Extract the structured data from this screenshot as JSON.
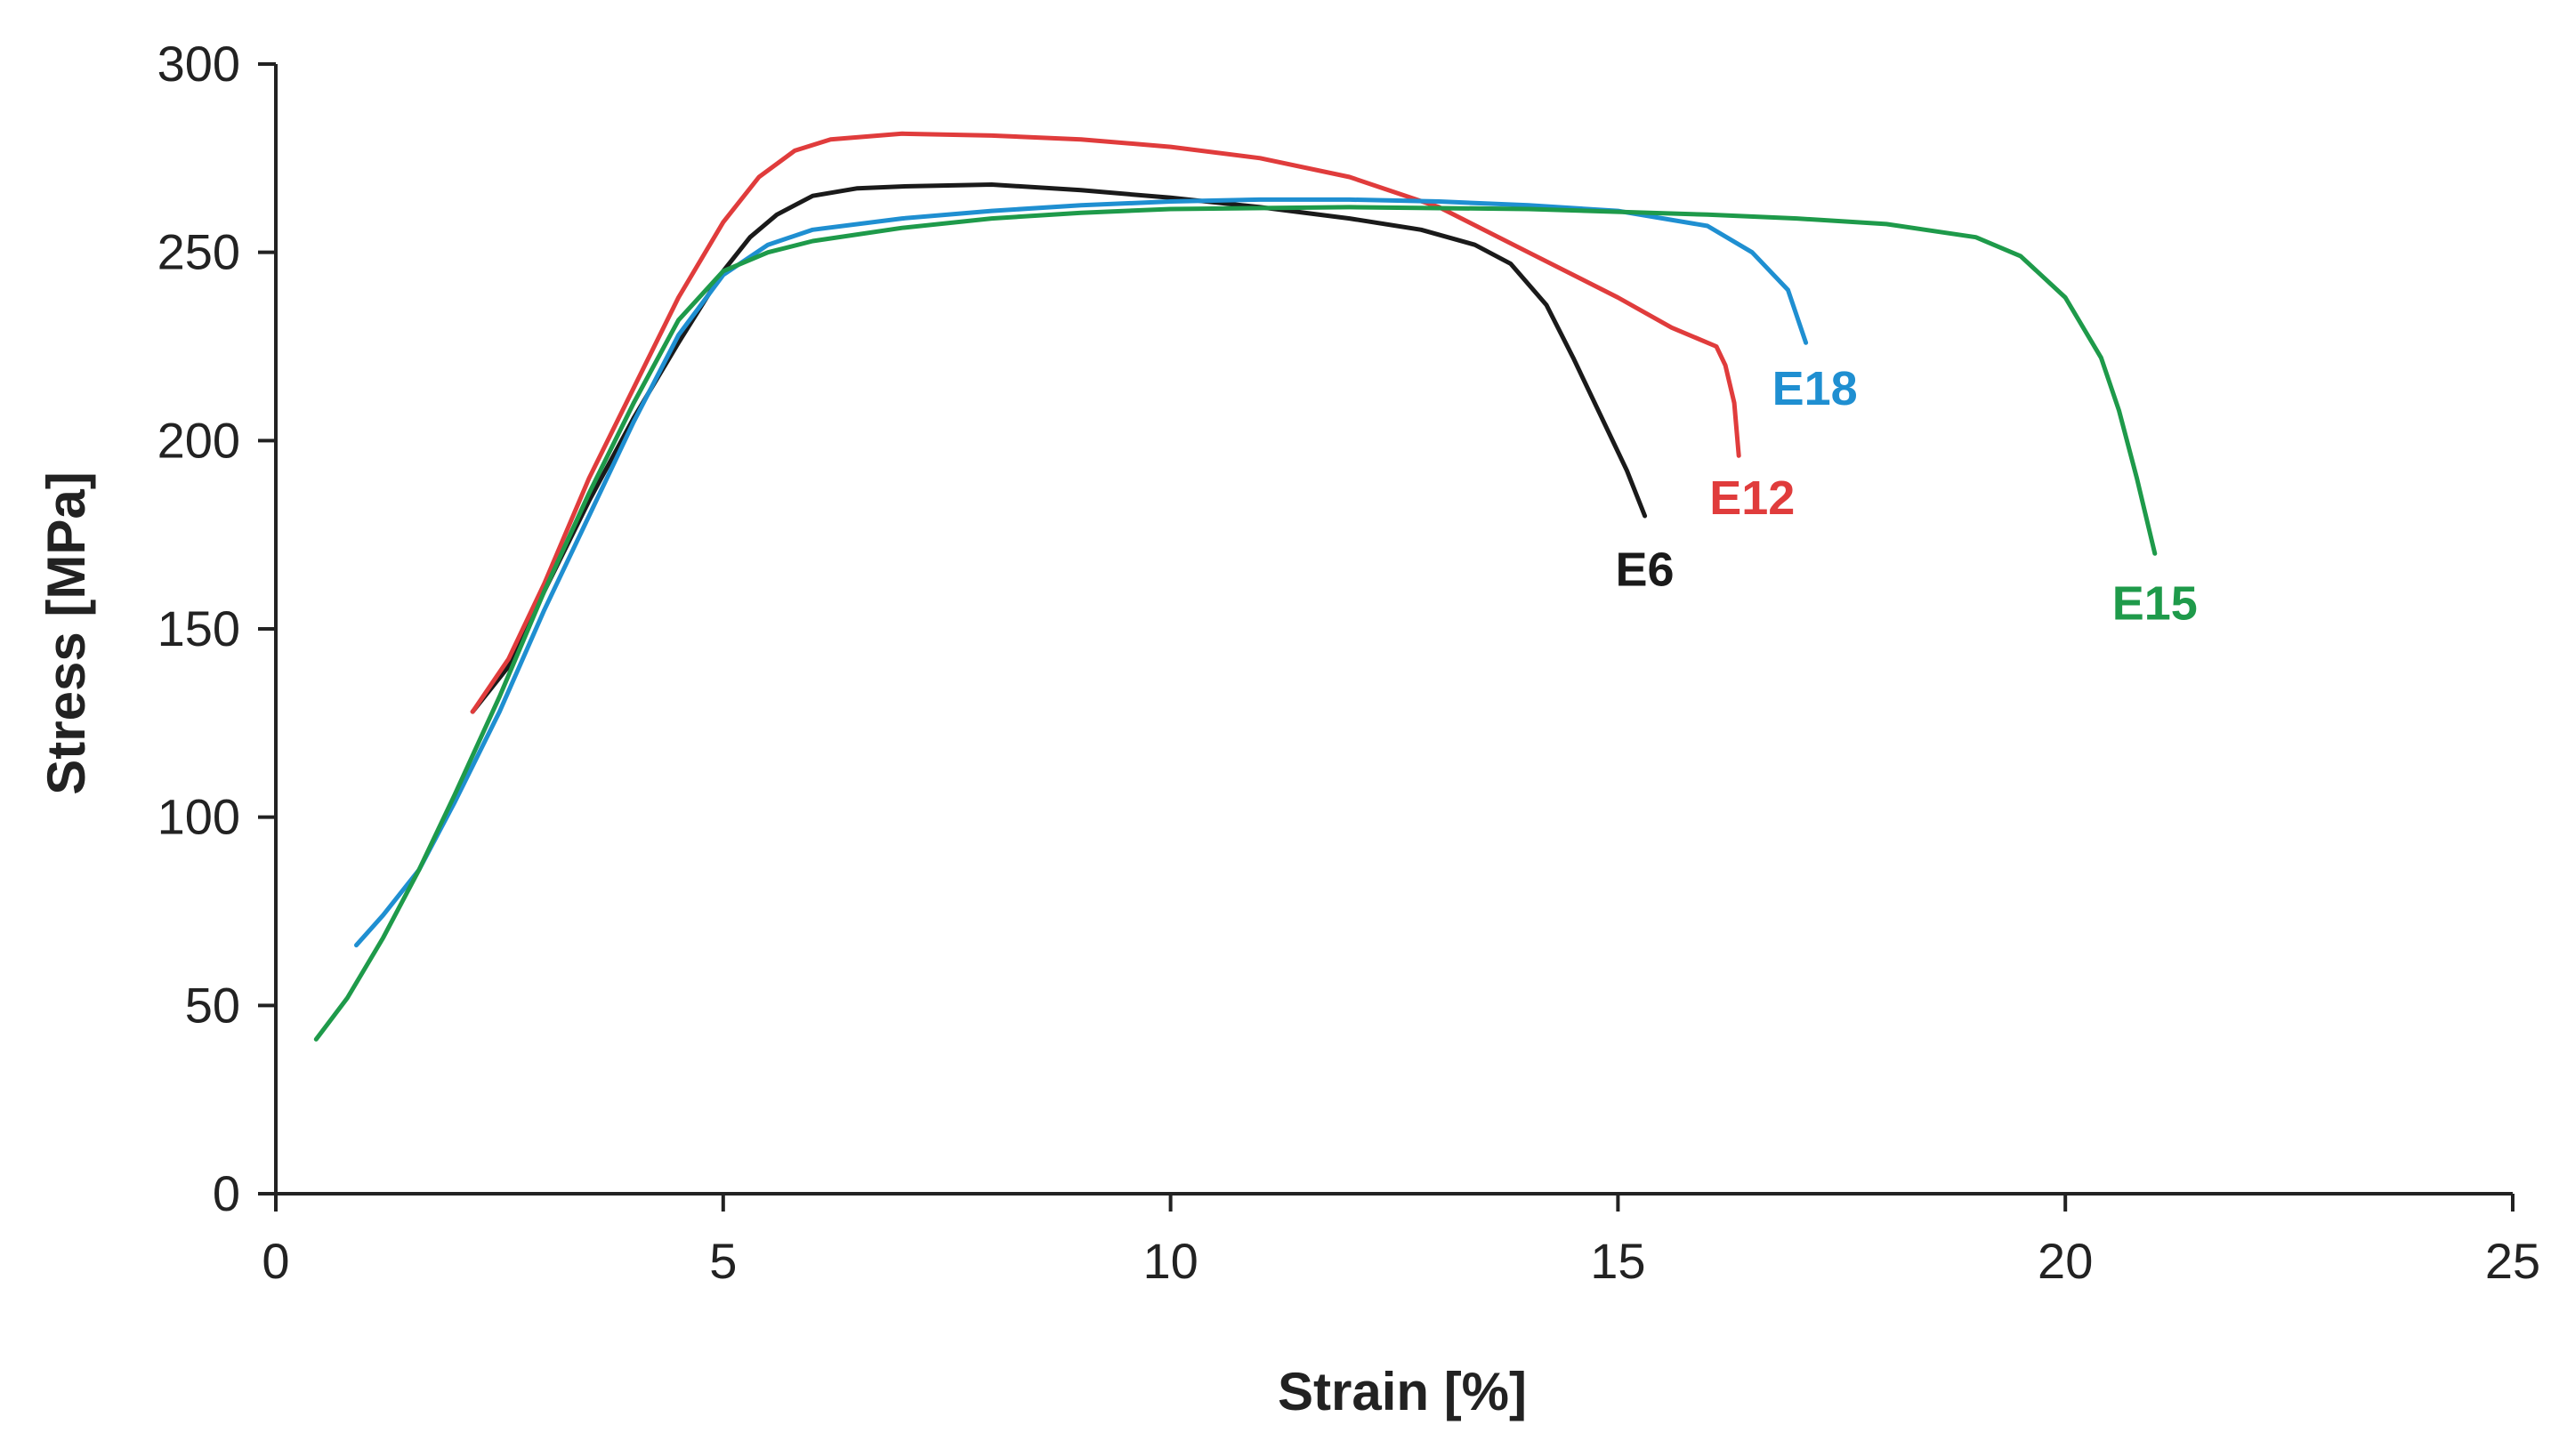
{
  "chart_data": {
    "type": "line",
    "title": "",
    "xlabel": "Strain [%]",
    "ylabel": "Stress [MPa]",
    "xlim": [
      0,
      25
    ],
    "ylim": [
      0,
      300
    ],
    "xticks": [
      0,
      5,
      10,
      15,
      20,
      25
    ],
    "yticks": [
      0,
      50,
      100,
      150,
      200,
      250,
      300
    ],
    "xtick_labels": [
      "0",
      "5",
      "10",
      "15",
      "20",
      "25"
    ],
    "ytick_labels": [
      "0",
      "50",
      "100",
      "150",
      "200",
      "250",
      "300"
    ],
    "grid": false,
    "legend": "inline labels at curve ends",
    "series": [
      {
        "name": "E6",
        "color": "#1a1a1a",
        "label_at": [
          15.3,
          166
        ],
        "points": [
          [
            2.2,
            128
          ],
          [
            2.6,
            140
          ],
          [
            3,
            160
          ],
          [
            3.5,
            184
          ],
          [
            4,
            206
          ],
          [
            4.5,
            226
          ],
          [
            5,
            245
          ],
          [
            5.3,
            254
          ],
          [
            5.6,
            260
          ],
          [
            6,
            265
          ],
          [
            6.5,
            267
          ],
          [
            7,
            267.5
          ],
          [
            8,
            268
          ],
          [
            9,
            266.5
          ],
          [
            10,
            264.5
          ],
          [
            11,
            262
          ],
          [
            12,
            259
          ],
          [
            12.8,
            256
          ],
          [
            13.4,
            252
          ],
          [
            13.8,
            247
          ],
          [
            14.2,
            236
          ],
          [
            14.5,
            222
          ],
          [
            14.8,
            207
          ],
          [
            15.1,
            192
          ],
          [
            15.3,
            180
          ]
        ]
      },
      {
        "name": "E12",
        "color": "#e03c3c",
        "label_at": [
          16.5,
          185
        ],
        "points": [
          [
            2.2,
            128
          ],
          [
            2.6,
            142
          ],
          [
            3,
            162
          ],
          [
            3.5,
            190
          ],
          [
            4,
            214
          ],
          [
            4.5,
            238
          ],
          [
            5,
            258
          ],
          [
            5.4,
            270
          ],
          [
            5.8,
            277
          ],
          [
            6.2,
            280
          ],
          [
            7,
            281.5
          ],
          [
            8,
            281
          ],
          [
            9,
            280
          ],
          [
            10,
            278
          ],
          [
            11,
            275
          ],
          [
            12,
            270
          ],
          [
            13,
            262
          ],
          [
            14,
            250
          ],
          [
            15,
            238
          ],
          [
            15.6,
            230
          ],
          [
            16.1,
            225
          ],
          [
            16.2,
            220
          ],
          [
            16.3,
            210
          ],
          [
            16.35,
            196
          ]
        ]
      },
      {
        "name": "E18",
        "color": "#1f8fd1",
        "label_at": [
          17.2,
          214
        ],
        "points": [
          [
            0.9,
            66
          ],
          [
            1.2,
            74
          ],
          [
            1.6,
            86
          ],
          [
            2,
            104
          ],
          [
            2.5,
            128
          ],
          [
            3,
            155
          ],
          [
            3.5,
            180
          ],
          [
            4,
            205
          ],
          [
            4.5,
            228
          ],
          [
            5,
            244
          ],
          [
            5.5,
            252
          ],
          [
            6,
            256
          ],
          [
            7,
            259
          ],
          [
            8,
            261
          ],
          [
            9,
            262.5
          ],
          [
            10,
            263.5
          ],
          [
            11,
            264
          ],
          [
            12,
            264
          ],
          [
            13,
            263.5
          ],
          [
            14,
            262.5
          ],
          [
            15,
            261
          ],
          [
            16,
            257
          ],
          [
            16.5,
            250
          ],
          [
            16.9,
            240
          ],
          [
            17.1,
            226
          ]
        ]
      },
      {
        "name": "E15",
        "color": "#1e9a4a",
        "label_at": [
          21.0,
          157
        ],
        "points": [
          [
            0.45,
            41
          ],
          [
            0.8,
            52
          ],
          [
            1.2,
            68
          ],
          [
            1.6,
            86
          ],
          [
            2,
            106
          ],
          [
            2.5,
            132
          ],
          [
            3,
            160
          ],
          [
            3.5,
            186
          ],
          [
            4,
            210
          ],
          [
            4.5,
            232
          ],
          [
            5,
            245
          ],
          [
            5.5,
            250
          ],
          [
            6,
            253
          ],
          [
            7,
            256.5
          ],
          [
            8,
            259
          ],
          [
            9,
            260.5
          ],
          [
            10,
            261.5
          ],
          [
            12,
            262
          ],
          [
            14,
            261.5
          ],
          [
            16,
            260
          ],
          [
            17,
            259
          ],
          [
            18,
            257.5
          ],
          [
            19,
            254
          ],
          [
            19.5,
            249
          ],
          [
            20,
            238
          ],
          [
            20.4,
            222
          ],
          [
            20.6,
            208
          ],
          [
            20.8,
            190
          ],
          [
            21.0,
            170
          ]
        ]
      }
    ]
  }
}
